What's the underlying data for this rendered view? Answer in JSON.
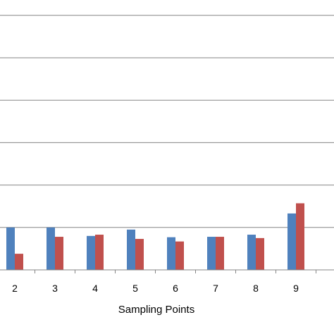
{
  "chart_data": {
    "type": "bar",
    "title": "",
    "xlabel": "Sampling Points",
    "ylabel": "",
    "categories": [
      "2",
      "3",
      "4",
      "5",
      "6",
      "7",
      "8",
      "9"
    ],
    "series": [
      {
        "values": [
          1.0,
          1.0,
          0.8,
          0.95,
          0.77,
          0.78,
          0.83,
          1.33
        ]
      },
      {
        "values": [
          0.38,
          0.78,
          0.83,
          0.73,
          0.67,
          0.78,
          0.75,
          1.57
        ]
      }
    ],
    "ylim": [
      0,
      6.4
    ],
    "grid": true,
    "legend": "none",
    "colors": {
      "series_1": "#4f81bd",
      "series_2": "#c0504d",
      "grid": "#868686",
      "axis": "#868686"
    }
  }
}
